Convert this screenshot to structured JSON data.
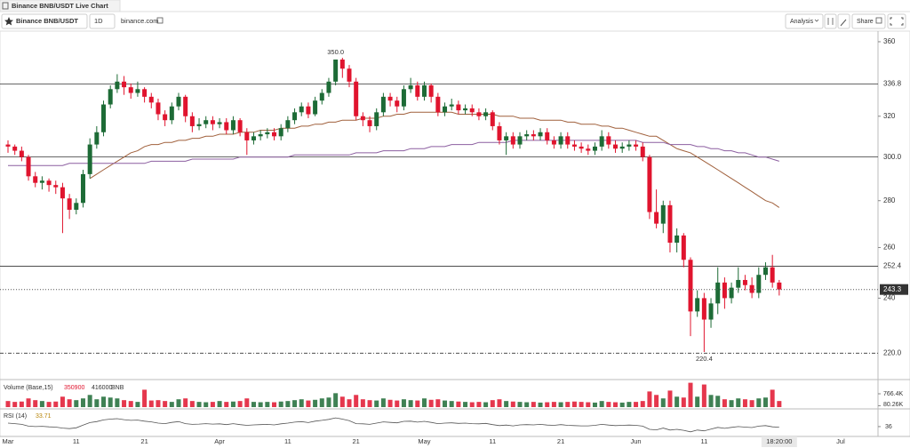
{
  "header": {
    "title": "Binance BNB/USDT Live Chart"
  },
  "toolbar": {
    "symbol": "Binance BNB/USDT",
    "interval": "1D",
    "source": "binance.com",
    "analysis": "Analysis",
    "share": "Share"
  },
  "chart_data": {
    "type": "candlestick",
    "categories": [
      "Mar",
      null,
      null,
      null,
      null,
      null,
      null,
      null,
      null,
      null,
      "11",
      null,
      null,
      null,
      null,
      null,
      null,
      null,
      null,
      null,
      "21",
      null,
      null,
      null,
      null,
      null,
      null,
      null,
      null,
      null,
      null,
      "Apr",
      null,
      null,
      null,
      null,
      null,
      null,
      null,
      null,
      null,
      "11",
      null,
      null,
      null,
      null,
      null,
      null,
      null,
      null,
      null,
      "21",
      null,
      null,
      null,
      null,
      null,
      null,
      null,
      null,
      null,
      "May",
      null,
      null,
      null,
      null,
      null,
      null,
      null,
      null,
      null,
      "11",
      null,
      null,
      null,
      null,
      null,
      null,
      null,
      null,
      null,
      "21",
      null,
      null,
      null,
      null,
      null,
      null,
      null,
      null,
      null,
      null,
      "Jun",
      null,
      null,
      null,
      null,
      null,
      null,
      null,
      null,
      null,
      "11",
      null,
      null,
      null,
      null,
      null,
      null,
      null,
      null,
      null,
      null,
      null,
      null,
      null,
      null,
      null,
      null,
      null,
      null,
      null,
      "Jul"
    ],
    "open": [
      306,
      305,
      303,
      300,
      291,
      288,
      289,
      287,
      286,
      281,
      276,
      279,
      292,
      306,
      312,
      326,
      334,
      338,
      335,
      332,
      334,
      330,
      327,
      321,
      318,
      325,
      330,
      320,
      315,
      316,
      318,
      316,
      317,
      313,
      318,
      312,
      308,
      310,
      311,
      312,
      310,
      314,
      318,
      322,
      325,
      321,
      328,
      332,
      338,
      350,
      345,
      338,
      320,
      318,
      315,
      322,
      330,
      328,
      325,
      334,
      336,
      330,
      336,
      330,
      322,
      325,
      326,
      323,
      324,
      322,
      320,
      322,
      315,
      308,
      310,
      306,
      310,
      311,
      310,
      312,
      308,
      306,
      310,
      306,
      305,
      304,
      303,
      305,
      310,
      306,
      304,
      305,
      306,
      305,
      300,
      275,
      270,
      278,
      262,
      265,
      255,
      235,
      240,
      232,
      238,
      246,
      240,
      244,
      247,
      245,
      242,
      249,
      252,
      246,
      null,
      null,
      null,
      null,
      null,
      null,
      null,
      null,
      null
    ],
    "high": [
      308,
      306,
      305,
      301,
      293,
      291,
      290,
      289,
      288,
      283,
      281,
      294,
      309,
      315,
      328,
      336,
      342,
      341,
      337,
      338,
      335,
      332,
      329,
      323,
      327,
      332,
      331,
      322,
      319,
      320,
      320,
      319,
      319,
      320,
      319,
      314,
      312,
      313,
      314,
      314,
      316,
      320,
      324,
      327,
      327,
      330,
      334,
      340,
      350,
      351,
      347,
      340,
      322,
      320,
      324,
      332,
      332,
      330,
      336,
      340,
      338,
      338,
      337,
      332,
      327,
      329,
      328,
      326,
      326,
      324,
      324,
      323,
      317,
      312,
      312,
      312,
      313,
      313,
      314,
      314,
      310,
      312,
      312,
      308,
      307,
      306,
      307,
      313,
      312,
      308,
      307,
      308,
      308,
      307,
      301,
      285,
      280,
      280,
      268,
      266,
      256,
      243,
      242,
      240,
      252,
      248,
      246,
      252,
      249,
      248,
      252,
      254,
      257,
      247,
      null,
      null,
      null,
      null,
      null,
      null,
      null,
      null,
      null
    ],
    "low": [
      302,
      301,
      298,
      289,
      286,
      285,
      284,
      283,
      266,
      272,
      274,
      277,
      290,
      304,
      310,
      324,
      332,
      331,
      329,
      330,
      327,
      324,
      318,
      315,
      316,
      323,
      317,
      312,
      313,
      314,
      313,
      314,
      311,
      311,
      310,
      301,
      306,
      308,
      309,
      308,
      308,
      312,
      316,
      320,
      319,
      320,
      326,
      330,
      336,
      340,
      335,
      318,
      315,
      312,
      313,
      320,
      325,
      322,
      323,
      332,
      328,
      328,
      327,
      320,
      320,
      323,
      321,
      321,
      320,
      318,
      318,
      313,
      306,
      301,
      304,
      304,
      308,
      308,
      308,
      306,
      304,
      304,
      304,
      303,
      302,
      301,
      301,
      303,
      304,
      302,
      302,
      303,
      303,
      298,
      272,
      268,
      266,
      258,
      258,
      252,
      226,
      233,
      220.4,
      229,
      234,
      236,
      238,
      242,
      243,
      240,
      240,
      247,
      244,
      241,
      null,
      null,
      null,
      null,
      null,
      null,
      null,
      null,
      null
    ],
    "close": [
      305,
      303,
      300,
      291,
      288,
      289,
      287,
      286,
      281,
      276,
      279,
      292,
      306,
      312,
      326,
      334,
      338,
      335,
      332,
      334,
      330,
      327,
      321,
      318,
      325,
      330,
      320,
      315,
      316,
      318,
      316,
      317,
      313,
      318,
      312,
      308,
      310,
      311,
      312,
      310,
      314,
      318,
      322,
      325,
      321,
      328,
      332,
      338,
      350,
      345,
      338,
      320,
      318,
      315,
      322,
      330,
      328,
      325,
      334,
      336,
      330,
      336,
      330,
      322,
      325,
      326,
      323,
      324,
      322,
      320,
      322,
      315,
      308,
      310,
      306,
      310,
      311,
      310,
      312,
      308,
      306,
      310,
      306,
      305,
      304,
      303,
      305,
      310,
      306,
      304,
      305,
      306,
      305,
      300,
      275,
      270,
      278,
      262,
      265,
      255,
      235,
      240,
      232,
      238,
      246,
      240,
      244,
      247,
      245,
      242,
      249,
      252,
      246,
      243.3,
      null,
      null,
      null,
      null,
      null,
      null,
      null,
      null,
      null
    ],
    "up_color": "#1d6b36",
    "down_color": "#e0142e",
    "ylim": [
      211.6,
      366.1
    ],
    "log": true,
    "yticks": [
      240,
      260,
      280,
      320,
      360
    ],
    "levels": [
      {
        "value": 336.8,
        "label": "336.8"
      },
      {
        "value": 300,
        "label": "300.0"
      },
      {
        "value": 252.4,
        "label": "252.4"
      },
      {
        "value": 220,
        "label": "220.0"
      }
    ],
    "annotations": [
      {
        "value": 350,
        "label": "350.0"
      },
      {
        "value": 220.4,
        "label": "220.4"
      }
    ],
    "countdown": "18:20:00",
    "series": [
      {
        "color": "#a0603c",
        "values": [
          null,
          null,
          null,
          null,
          null,
          null,
          null,
          null,
          null,
          null,
          null,
          null,
          290,
          292,
          294,
          296,
          298,
          300,
          302,
          303,
          305,
          306,
          306,
          307,
          307,
          308,
          308,
          309,
          309,
          310,
          310,
          311,
          311,
          311,
          312,
          312,
          312,
          313,
          313,
          313,
          314,
          314,
          314,
          315,
          315,
          316,
          316,
          317,
          317,
          318,
          318,
          318,
          319,
          319,
          319,
          320,
          320,
          321,
          321,
          322,
          322,
          322,
          322,
          322,
          322,
          322,
          321,
          321,
          321,
          321,
          321,
          321,
          320,
          320,
          320,
          319,
          319,
          319,
          318,
          318,
          318,
          318,
          317,
          317,
          316,
          316,
          316,
          315,
          315,
          314,
          314,
          313,
          312,
          311,
          310,
          310,
          308,
          306,
          304,
          303,
          302,
          300,
          298,
          296,
          294,
          292,
          290,
          288,
          286,
          284,
          282,
          280,
          279,
          277,
          null,
          null,
          null,
          null,
          null,
          null,
          null,
          null,
          null
        ]
      },
      {
        "color": "#8c5fa0",
        "values": [
          296,
          296,
          296,
          296,
          296,
          296,
          296,
          296,
          296,
          297,
          297,
          297,
          297,
          297,
          297,
          297,
          297,
          297,
          297,
          297,
          297,
          298,
          298,
          298,
          298,
          298,
          298,
          299,
          299,
          299,
          299,
          299,
          299,
          299,
          300,
          300,
          300,
          300,
          300,
          300,
          300,
          300,
          301,
          301,
          301,
          301,
          301,
          301,
          301,
          301,
          301,
          302,
          302,
          302,
          302,
          303,
          303,
          303,
          303,
          304,
          304,
          304,
          305,
          305,
          305,
          306,
          306,
          306,
          306,
          307,
          307,
          307,
          307,
          307,
          308,
          308,
          308,
          308,
          308,
          308,
          308,
          308,
          308,
          308,
          308,
          308,
          308,
          308,
          308,
          308,
          308,
          308,
          308,
          307,
          307,
          307,
          307,
          306,
          306,
          306,
          306,
          305,
          305,
          304,
          304,
          303,
          303,
          302,
          302,
          301,
          300,
          300,
          299,
          298,
          null,
          null,
          null,
          null,
          null,
          null,
          null,
          null,
          null
        ]
      }
    ],
    "volume": {
      "label": "Volume (Base,15)",
      "ma": 416000,
      "unit": "BNB",
      "values": [
        350000,
        300000,
        320000,
        500000,
        400000,
        350000,
        300000,
        320000,
        600000,
        450000,
        400000,
        500000,
        700000,
        450000,
        600000,
        550000,
        500000,
        400000,
        350000,
        300000,
        1000000,
        380000,
        400000,
        350000,
        300000,
        450000,
        500000,
        350000,
        300000,
        280000,
        300000,
        350000,
        300000,
        320000,
        350000,
        500000,
        300000,
        280000,
        300000,
        280000,
        320000,
        350000,
        400000,
        450000,
        380000,
        420000,
        500000,
        550000,
        800000,
        600000,
        450000,
        700000,
        450000,
        400000,
        380000,
        500000,
        420000,
        380000,
        450000,
        400000,
        380000,
        500000,
        420000,
        450000,
        380000,
        350000,
        320000,
        300000,
        280000,
        300000,
        280000,
        400000,
        450000,
        350000,
        320000,
        300000,
        280000,
        300000,
        260000,
        280000,
        300000,
        280000,
        300000,
        320000,
        300000,
        280000,
        260000,
        350000,
        300000,
        280000,
        260000,
        300000,
        300000,
        350000,
        900000,
        700000,
        500000,
        950000,
        600000,
        550000,
        1400000,
        600000,
        1300000,
        700000,
        650000,
        450000,
        400000,
        500000,
        450000,
        400000,
        500000,
        550000,
        1000000,
        350900,
        null,
        null,
        null,
        null,
        null,
        null,
        null,
        null,
        null
      ],
      "ylim": [
        0,
        1533000
      ],
      "yticks": [
        {
          "value": 766400,
          "label": "766.4K"
        },
        {
          "value": 80260,
          "label": "80.26K"
        }
      ]
    },
    "rsi": {
      "label": "RSI (14)",
      "color": "#555555",
      "values": [
        50,
        48,
        45,
        38,
        36,
        37,
        35,
        34,
        30,
        28,
        31,
        42,
        52,
        56,
        63,
        66,
        68,
        64,
        61,
        62,
        58,
        55,
        50,
        48,
        53,
        56,
        48,
        45,
        46,
        48,
        46,
        47,
        44,
        48,
        44,
        41,
        43,
        44,
        45,
        43,
        47,
        50,
        54,
        56,
        52,
        58,
        61,
        65,
        71,
        66,
        60,
        48,
        47,
        45,
        50,
        55,
        53,
        51,
        57,
        58,
        54,
        57,
        53,
        48,
        50,
        51,
        49,
        50,
        48,
        47,
        49,
        44,
        40,
        42,
        39,
        43,
        44,
        43,
        45,
        42,
        41,
        44,
        41,
        40,
        39,
        39,
        41,
        45,
        42,
        40,
        41,
        42,
        41,
        38,
        25,
        23,
        30,
        22,
        25,
        21,
        15,
        22,
        19,
        26,
        33,
        29,
        33,
        36,
        34,
        32,
        38,
        40,
        35,
        33.71,
        null,
        null,
        null,
        null,
        null,
        null,
        null,
        null,
        null
      ],
      "ylim": [
        0,
        100
      ],
      "yticks": [
        36
      ]
    }
  }
}
